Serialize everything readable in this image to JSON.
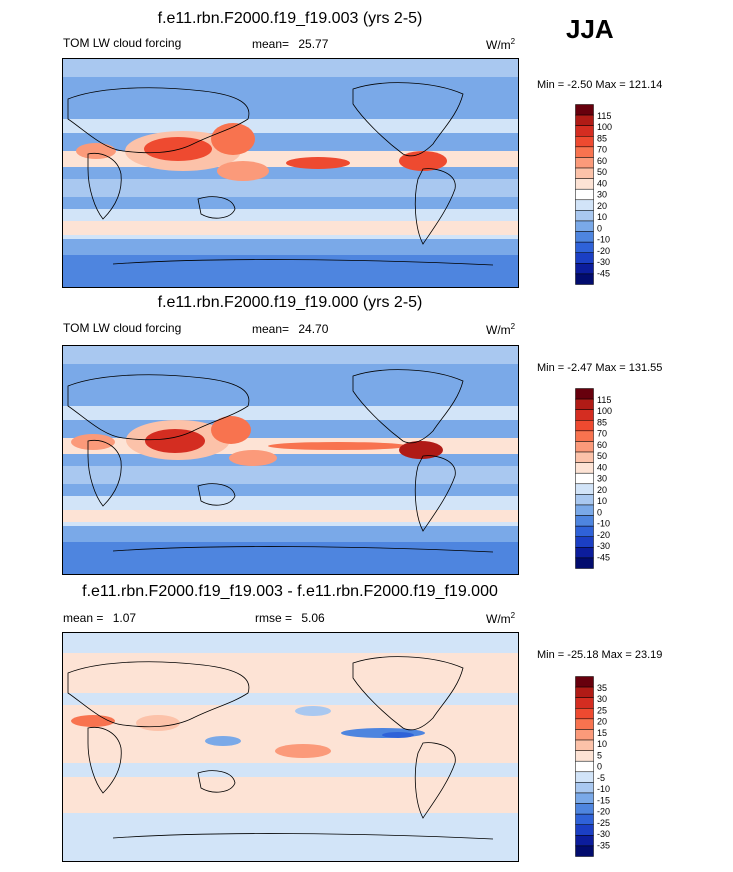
{
  "season": "JJA",
  "panels": [
    {
      "title": "f.e11.rbn.F2000.f19_f19.003 (yrs 2-5)",
      "left_label": "TOM LW cloud forcing",
      "stat_label": "mean=",
      "stat_value": "25.77",
      "stat2_label": "",
      "stat2_value": "",
      "units_base": "W/m",
      "units_exp": "2",
      "min_label": "Min =",
      "min_value": "-2.50",
      "max_label": "Max =",
      "max_value": "121.14",
      "colorbar_ticks": [
        "115",
        "100",
        "85",
        "70",
        "60",
        "50",
        "40",
        "30",
        "20",
        "10",
        "0",
        "-10",
        "-20",
        "-30",
        "-45"
      ]
    },
    {
      "title": "f.e11.rbn.F2000.f19_f19.000 (yrs 2-5)",
      "left_label": "TOM LW cloud forcing",
      "stat_label": "mean=",
      "stat_value": "24.70",
      "stat2_label": "",
      "stat2_value": "",
      "units_base": "W/m",
      "units_exp": "2",
      "min_label": "Min =",
      "min_value": "-2.47",
      "max_label": "Max =",
      "max_value": "131.55",
      "colorbar_ticks": [
        "115",
        "100",
        "85",
        "70",
        "60",
        "50",
        "40",
        "30",
        "20",
        "10",
        "0",
        "-10",
        "-20",
        "-30",
        "-45"
      ]
    },
    {
      "title": "f.e11.rbn.F2000.f19_f19.003 - f.e11.rbn.F2000.f19_f19.000",
      "left_label": "",
      "stat_label": "mean =",
      "stat_value": "1.07",
      "stat2_label": "rmse =",
      "stat2_value": "5.06",
      "units_base": "W/m",
      "units_exp": "2",
      "min_label": "Min =",
      "min_value": "-25.18",
      "max_label": "Max =",
      "max_value": "23.19",
      "colorbar_ticks": [
        "35",
        "30",
        "25",
        "20",
        "15",
        "10",
        "5",
        "0",
        "-5",
        "-10",
        "-15",
        "-20",
        "-25",
        "-30",
        "-35"
      ]
    }
  ],
  "colors": {
    "abs_scale": [
      "#67000d",
      "#b01b16",
      "#d42d21",
      "#ee4a30",
      "#f8734f",
      "#fb9a7a",
      "#fcc2a9",
      "#fde3d5",
      "#ffffff",
      "#d2e4f8",
      "#a9c8f0",
      "#7aa9e8",
      "#4e85df",
      "#2f62d8",
      "#1b3fc4",
      "#0c1d9c",
      "#020c6e"
    ],
    "diff_scale": [
      "#67000d",
      "#b01b16",
      "#d42d21",
      "#ee4a30",
      "#f8734f",
      "#fb9a7a",
      "#fcc2a9",
      "#fde3d5",
      "#ffffff",
      "#d2e4f8",
      "#a9c8f0",
      "#7aa9e8",
      "#4e85df",
      "#2f62d8",
      "#1b3fc4",
      "#0c1d9c",
      "#020c6e"
    ]
  },
  "chart_data": [
    {
      "type": "heatmap",
      "title": "f.e11.rbn.F2000.f19_f19.003 (yrs 2-5)",
      "variable": "TOM LW cloud forcing",
      "units": "W/m2",
      "mean": 25.77,
      "min": -2.5,
      "max": 121.14,
      "levels": [
        -45,
        -30,
        -20,
        -10,
        0,
        10,
        20,
        30,
        40,
        50,
        60,
        70,
        85,
        100,
        115
      ]
    },
    {
      "type": "heatmap",
      "title": "f.e11.rbn.F2000.f19_f19.000 (yrs 2-5)",
      "variable": "TOM LW cloud forcing",
      "units": "W/m2",
      "mean": 24.7,
      "min": -2.47,
      "max": 131.55,
      "levels": [
        -45,
        -30,
        -20,
        -10,
        0,
        10,
        20,
        30,
        40,
        50,
        60,
        70,
        85,
        100,
        115
      ]
    },
    {
      "type": "heatmap",
      "title": "f.e11.rbn.F2000.f19_f19.003 - f.e11.rbn.F2000.f19_f19.000",
      "units": "W/m2",
      "mean": 1.07,
      "rmse": 5.06,
      "min": -25.18,
      "max": 23.19,
      "levels": [
        -35,
        -30,
        -25,
        -20,
        -15,
        -10,
        -5,
        0,
        5,
        10,
        15,
        20,
        25,
        30,
        35
      ]
    }
  ]
}
